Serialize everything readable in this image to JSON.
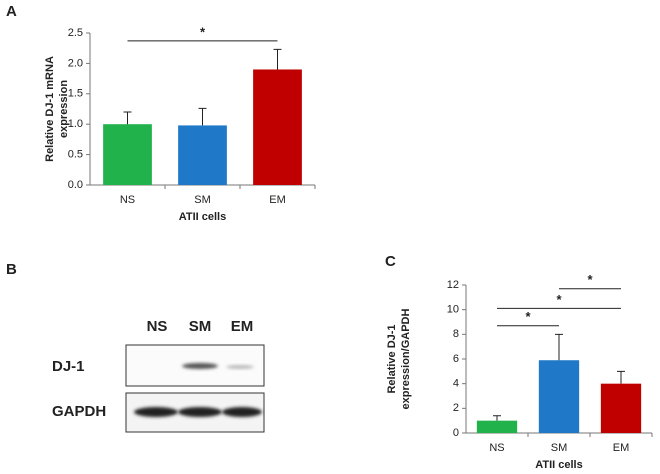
{
  "chart_data": [
    {
      "type": "bar",
      "panel_label": "A",
      "ylabel": [
        "Relative DJ-1 mRNA",
        "expression"
      ],
      "xlabel": "ATII cells",
      "categories": [
        "NS",
        "SM",
        "EM"
      ],
      "values": [
        1.0,
        0.98,
        1.9
      ],
      "errors": [
        0.2,
        0.28,
        0.33
      ],
      "colors": [
        "#22b24c",
        "#1f78c8",
        "#c00000"
      ],
      "ylim": [
        0,
        2.5
      ],
      "yticks": [
        {
          "value": 0,
          "label": "0.0"
        },
        0.5,
        {
          "value": 1,
          "label": "1.0"
        },
        1.5,
        {
          "value": 2,
          "label": "2.0"
        },
        2.5
      ],
      "significance": [
        {
          "pair": [
            "NS",
            "EM"
          ],
          "y": 2.37,
          "label": "*"
        }
      ]
    },
    {
      "type": "bar",
      "panel_label": "C",
      "ylabel": [
        "Relative DJ-1",
        "expression/GAPDH"
      ],
      "xlabel": "ATII cells",
      "categories": [
        "NS",
        "SM",
        "EM"
      ],
      "values": [
        1.0,
        5.9,
        4.0
      ],
      "errors": [
        0.4,
        2.1,
        1.0
      ],
      "colors": [
        "#22b24c",
        "#1f78c8",
        "#c00000"
      ],
      "ylim": [
        0,
        12
      ],
      "yticks": [
        0,
        2,
        4,
        6,
        8,
        10,
        12
      ],
      "significance": [
        {
          "pair": [
            "NS",
            "SM"
          ],
          "y": 8.7,
          "label": "*"
        },
        {
          "pair": [
            "NS",
            "EM"
          ],
          "y": 10.1,
          "label": "*"
        },
        {
          "pair": [
            "SM",
            "EM"
          ],
          "y": 11.7,
          "label": "*"
        }
      ]
    }
  ],
  "blot": {
    "panel_label": "B",
    "lanes": [
      "NS",
      "SM",
      "EM"
    ],
    "rows": [
      "DJ-1",
      "GAPDH"
    ]
  }
}
